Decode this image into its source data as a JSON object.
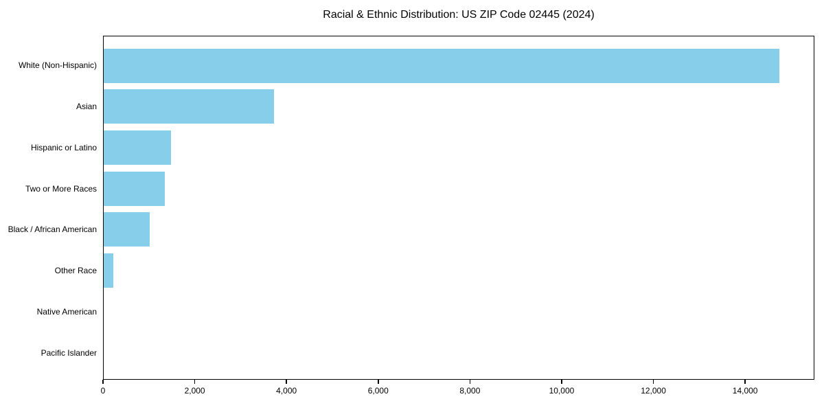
{
  "chart_data": {
    "type": "bar",
    "orientation": "horizontal",
    "title": "Racial & Ethnic Distribution: US ZIP Code 02445 (2024)",
    "categories": [
      "White (Non-Hispanic)",
      "Asian",
      "Hispanic or Latino",
      "Two or More Races",
      "Black / African American",
      "Other Race",
      "Native American",
      "Pacific Islander"
    ],
    "values": [
      14760,
      3720,
      1470,
      1330,
      1005,
      215,
      0,
      0
    ],
    "xlabel": "",
    "ylabel": "",
    "xlim": [
      0,
      15510
    ],
    "x_ticks": [
      0,
      2000,
      4000,
      6000,
      8000,
      10000,
      12000,
      14000
    ],
    "x_tick_labels": [
      "0",
      "2,000",
      "4,000",
      "6,000",
      "8,000",
      "10,000",
      "12,000",
      "14,000"
    ],
    "bar_color": "#87CEEB",
    "text_color": "#000000",
    "spine_color": "#000000",
    "grid": false,
    "legend": null
  }
}
